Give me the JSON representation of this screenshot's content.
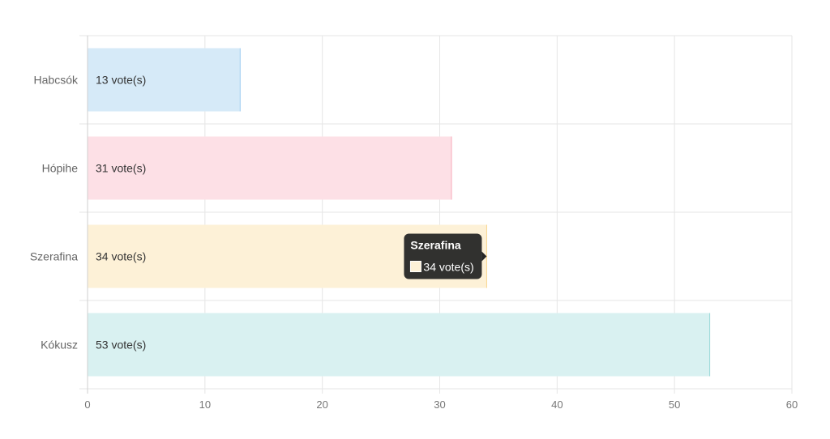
{
  "chart_data": {
    "type": "bar",
    "orientation": "horizontal",
    "categories": [
      "Habcsók",
      "Hópihe",
      "Szerafina",
      "Kókusz"
    ],
    "series": [
      {
        "values": [
          13,
          31,
          34,
          53
        ]
      }
    ],
    "data_labels": [
      "13 vote(s)",
      "31 vote(s)",
      "34 vote(s)",
      "53 vote(s)"
    ],
    "xlim": [
      0,
      60
    ],
    "x_ticks": [
      0,
      10,
      20,
      30,
      40,
      50,
      60
    ],
    "grid": true,
    "colors": {
      "fills": [
        "#d6eaf8",
        "#fde0e6",
        "#fdf1d7",
        "#d9f1f1"
      ],
      "strokes": [
        "#9ccbf0",
        "#f7a9bb",
        "#f9d58e",
        "#9ad8d8"
      ]
    },
    "tooltip": {
      "title": "Szerafina",
      "body": "34 vote(s)",
      "category_index": 2
    }
  }
}
